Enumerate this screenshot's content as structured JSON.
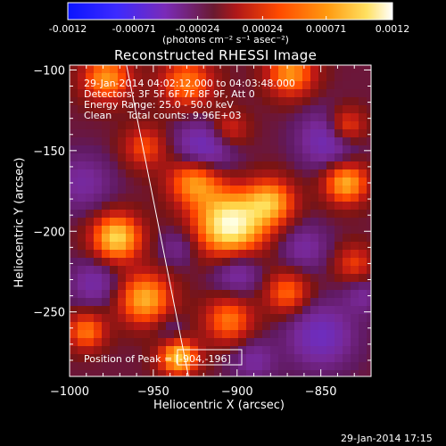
{
  "colorbar": {
    "tick_labels": [
      "-0.0012",
      "-0.00071",
      "-0.00024",
      "0.00024",
      "0.00071",
      "0.0012"
    ],
    "tick_values": [
      -0.0012,
      -0.00071,
      -0.00024,
      0.00024,
      0.00071,
      0.0012
    ],
    "range": [
      -0.0012,
      0.0012
    ],
    "units_label": "(photons cm⁻² s⁻¹ asec⁻²)",
    "colors": [
      "#1020ff",
      "#7a2bb8",
      "#bf2b2b",
      "#ff6a00",
      "#ffc020",
      "#ffffe0"
    ]
  },
  "chart_data": {
    "type": "heatmap",
    "title": "Reconstructed RHESSI Image",
    "xlabel": "Heliocentric X (arcsec)",
    "ylabel": "Heliocentric Y (arcsec)",
    "xlim": [
      -1000,
      -820
    ],
    "ylim": [
      -290,
      -97
    ],
    "x_ticks": [
      -1000,
      -950,
      -900,
      -850
    ],
    "x_tick_labels": [
      "−1000",
      "−950",
      "−900",
      "−850"
    ],
    "y_ticks": [
      -100,
      -150,
      -200,
      -250
    ],
    "y_tick_labels": [
      "−100",
      "−150",
      "−200",
      "−250"
    ],
    "peak_position": [
      -904,
      -196
    ],
    "limb_line": [
      [
        -966,
        -97
      ],
      [
        -929,
        -290
      ]
    ],
    "sources": [
      {
        "x": -904,
        "y": -196,
        "v": 0.0012,
        "r": 14
      },
      {
        "x": -972,
        "y": -204,
        "v": 0.00095,
        "r": 10
      },
      {
        "x": -925,
        "y": -168,
        "v": 0.0008,
        "r": 11
      },
      {
        "x": -880,
        "y": -182,
        "v": 0.00075,
        "r": 10
      },
      {
        "x": -835,
        "y": -170,
        "v": 0.0008,
        "r": 9
      },
      {
        "x": -835,
        "y": -135,
        "v": 0.0006,
        "r": 8
      },
      {
        "x": -978,
        "y": -105,
        "v": 0.0007,
        "r": 10
      },
      {
        "x": -930,
        "y": -108,
        "v": 0.0006,
        "r": 11
      },
      {
        "x": -868,
        "y": -102,
        "v": 0.0007,
        "r": 10
      },
      {
        "x": -955,
        "y": -242,
        "v": 0.0008,
        "r": 11
      },
      {
        "x": -935,
        "y": -278,
        "v": 0.0009,
        "r": 8
      },
      {
        "x": -905,
        "y": -255,
        "v": 0.0006,
        "r": 10
      },
      {
        "x": -870,
        "y": -238,
        "v": 0.00055,
        "r": 9
      },
      {
        "x": -990,
        "y": -262,
        "v": 0.0006,
        "r": 8
      },
      {
        "x": -955,
        "y": -148,
        "v": 0.00045,
        "r": 9
      },
      {
        "x": -905,
        "y": -137,
        "v": 0.0004,
        "r": 8
      },
      {
        "x": -830,
        "y": -220,
        "v": 0.0004,
        "r": 8
      },
      {
        "x": -992,
        "y": -170,
        "v": -0.0003,
        "r": 12
      },
      {
        "x": -920,
        "y": -150,
        "v": -0.0006,
        "r": 12
      },
      {
        "x": -935,
        "y": -210,
        "v": -0.00025,
        "r": 8
      },
      {
        "x": -900,
        "y": -225,
        "v": -0.0004,
        "r": 10
      },
      {
        "x": -845,
        "y": -143,
        "v": -0.0005,
        "r": 12
      },
      {
        "x": -860,
        "y": -210,
        "v": -0.0003,
        "r": 10
      },
      {
        "x": -985,
        "y": -232,
        "v": -0.00035,
        "r": 10
      },
      {
        "x": -940,
        "y": -262,
        "v": -0.0002,
        "r": 7
      },
      {
        "x": -850,
        "y": -265,
        "v": -0.0005,
        "r": 13
      },
      {
        "x": -890,
        "y": -280,
        "v": -0.0003,
        "r": 9
      },
      {
        "x": -825,
        "y": -240,
        "v": -0.00025,
        "r": 8
      }
    ]
  },
  "info": {
    "time_range": "29-Jan-2014 04:02:12.000 to 04:03:48.000",
    "detectors": "Detectors: 3F 5F 6F 7F 8F 9F, Att 0",
    "energy": "Energy Range: 25.0 - 50.0 keV",
    "clean": "Clean     Total counts: 9.96E+03"
  },
  "peak_label": "Position of Peak = [-904,-196]",
  "footer_date": "29-Jan-2014 17:15"
}
